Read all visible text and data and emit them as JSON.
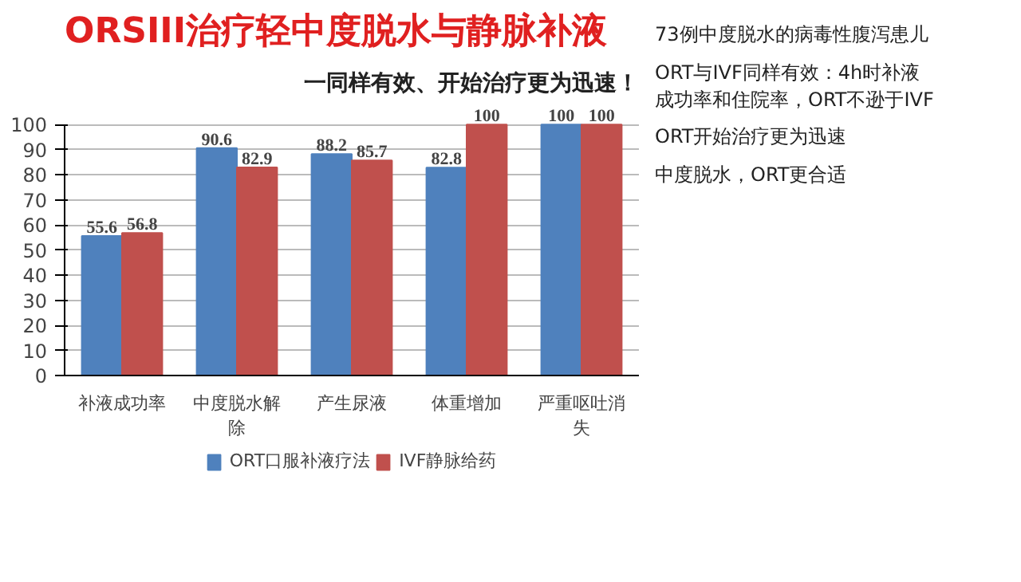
{
  "chart_data": {
    "type": "bar",
    "title": "ORSIII治疗轻中度脱水与静脉补液",
    "subtitle": "一同样有效、开始治疗更为迅速！",
    "categories": [
      "补液成功率",
      "中度脱水解除",
      "产生尿液",
      "体重增加",
      "严重呕吐消失"
    ],
    "series": [
      {
        "name": "ORT口服补液疗法",
        "color": "#4f81bd",
        "values": [
          55.6,
          90.6,
          88.2,
          82.8,
          100
        ]
      },
      {
        "name": "IVF静脉给药",
        "color": "#c0504d",
        "values": [
          56.8,
          82.9,
          85.7,
          100,
          100
        ]
      }
    ],
    "ylim": [
      0,
      100
    ],
    "yticks": [
      0,
      10,
      20,
      30,
      40,
      50,
      60,
      70,
      80,
      90,
      100
    ],
    "grid": "y",
    "legend": "bottom",
    "data_labels": true,
    "annotations": [
      "73例中度脱水的病毒性腹泻患儿",
      "ORT与IVF同样有效：4h时补液成功率和住院率，ORT不逊于IVF",
      "ORT开始治疗更为迅速",
      "中度脱水，ORT更合适"
    ]
  }
}
